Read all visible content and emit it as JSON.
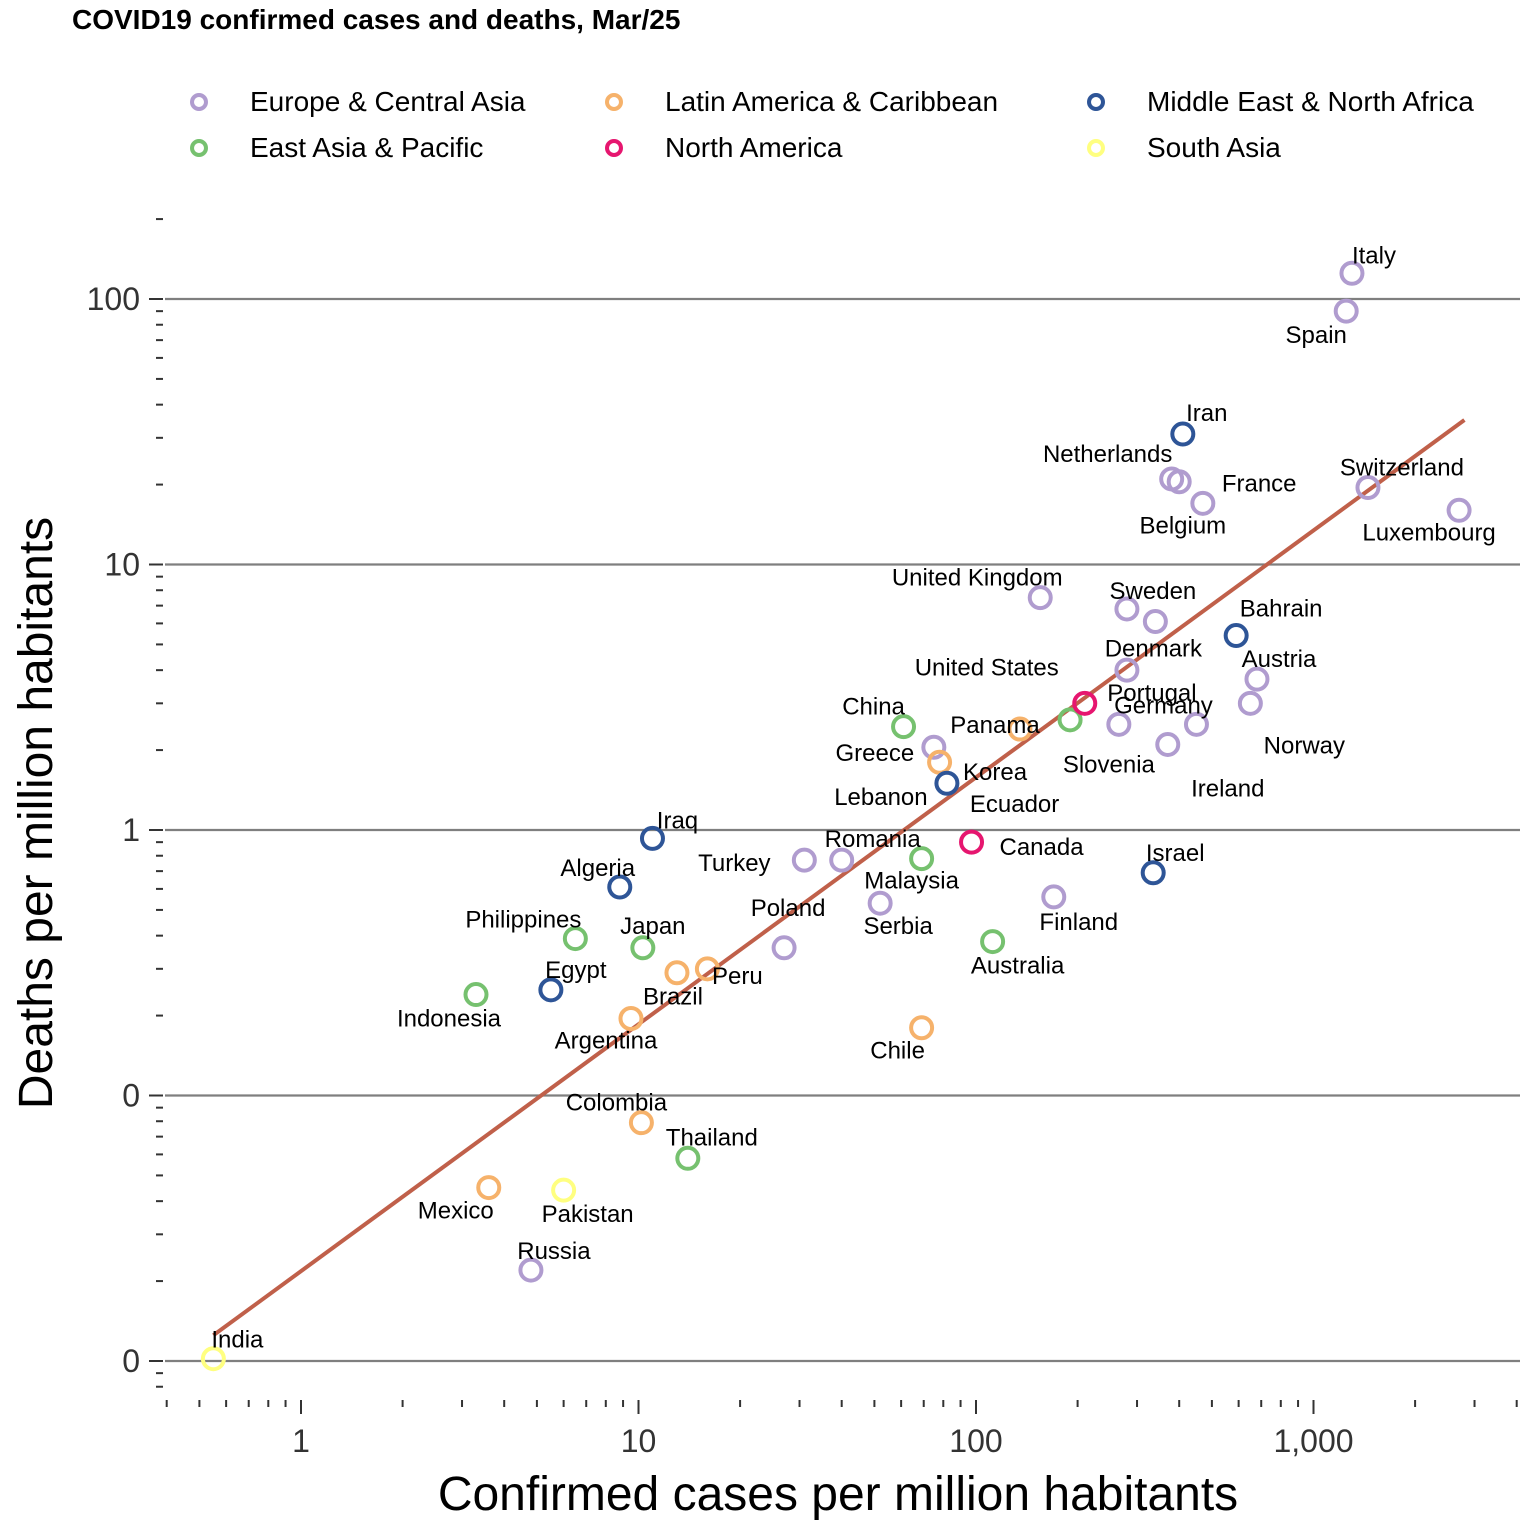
{
  "title": "COVID19 confirmed cases and deaths, Mar/25",
  "legend": [
    {
      "label": "Europe & Central Asia",
      "color": "#b09ccf"
    },
    {
      "label": "Latin America & Caribbean",
      "color": "#f6b26b"
    },
    {
      "label": "Middle East & North Africa",
      "color": "#2e5597"
    },
    {
      "label": "East Asia & Pacific",
      "color": "#76c16f"
    },
    {
      "label": "North America",
      "color": "#e6166f"
    },
    {
      "label": "South Asia",
      "color": "#ffff80"
    }
  ],
  "chart_data": {
    "type": "scatter",
    "title": "COVID19 confirmed cases and deaths, Mar/25",
    "xlabel": "Confirmed cases per million habitants",
    "ylabel": "Deaths per million habitants",
    "x_scale": "log10",
    "y_scale": "log10",
    "xlim": [
      0.4,
      4500
    ],
    "ylim": [
      0.0075,
      260
    ],
    "x_ticks": [
      {
        "value": 1,
        "label": "1"
      },
      {
        "value": 10,
        "label": "10"
      },
      {
        "value": 100,
        "label": "100"
      },
      {
        "value": 1000,
        "label": "1,000"
      }
    ],
    "y_ticks": [
      {
        "value": 0.01,
        "label": "0"
      },
      {
        "value": 0.1,
        "label": "0"
      },
      {
        "value": 1,
        "label": "1"
      },
      {
        "value": 10,
        "label": "10"
      },
      {
        "value": 100,
        "label": "100"
      }
    ],
    "grid": "horizontal major",
    "legend_position": "top",
    "trend_line": {
      "x": [
        0.55,
        2800
      ],
      "y": [
        0.0125,
        35
      ]
    },
    "series": [
      {
        "name": "Europe & Central Asia",
        "color": "#b09ccf",
        "points": [
          {
            "label": "Italy",
            "x": 1300,
            "y": 125
          },
          {
            "label": "Spain",
            "x": 1250,
            "y": 90
          },
          {
            "label": "Netherlands",
            "x": 380,
            "y": 21
          },
          {
            "label": "France",
            "x": 400,
            "y": 20.5
          },
          {
            "label": "Belgium",
            "x": 470,
            "y": 17
          },
          {
            "label": "Switzerland",
            "x": 1450,
            "y": 19.5
          },
          {
            "label": "Luxembourg",
            "x": 2700,
            "y": 16
          },
          {
            "label": "United Kingdom",
            "x": 155,
            "y": 7.5
          },
          {
            "label": "Sweden",
            "x": 280,
            "y": 6.8
          },
          {
            "label": "Denmark",
            "x": 340,
            "y": 6.1
          },
          {
            "label": "Portugal",
            "x": 280,
            "y": 4
          },
          {
            "label": "Austria",
            "x": 680,
            "y": 3.7
          },
          {
            "label": "Norway",
            "x": 650,
            "y": 3
          },
          {
            "label": "Germany",
            "x": 450,
            "y": 2.5
          },
          {
            "label": "Slovenia",
            "x": 265,
            "y": 2.5
          },
          {
            "label": "Ireland",
            "x": 370,
            "y": 2.1
          },
          {
            "label": "Greece",
            "x": 75,
            "y": 2.05
          },
          {
            "label": "Finland",
            "x": 170,
            "y": 0.56
          },
          {
            "label": "Turkey",
            "x": 31,
            "y": 0.77
          },
          {
            "label": "Romania",
            "x": 40,
            "y": 0.77
          },
          {
            "label": "Serbia",
            "x": 52,
            "y": 0.53
          },
          {
            "label": "Poland",
            "x": 27,
            "y": 0.36
          },
          {
            "label": "Russia",
            "x": 4.8,
            "y": 0.022
          }
        ]
      },
      {
        "name": "Latin America & Caribbean",
        "color": "#f6b26b",
        "points": [
          {
            "label": "Panama",
            "x": 135,
            "y": 2.4
          },
          {
            "label": "Ecuador",
            "x": 78,
            "y": 1.8
          },
          {
            "label": "Peru",
            "x": 16,
            "y": 0.3
          },
          {
            "label": "Brazil",
            "x": 13,
            "y": 0.29
          },
          {
            "label": "Argentina",
            "x": 9.5,
            "y": 0.195
          },
          {
            "label": "Chile",
            "x": 69,
            "y": 0.18
          },
          {
            "label": "Colombia",
            "x": 10.2,
            "y": 0.079
          },
          {
            "label": "Mexico",
            "x": 3.6,
            "y": 0.045
          }
        ]
      },
      {
        "name": "Middle East & North Africa",
        "color": "#2e5597",
        "points": [
          {
            "label": "Iran",
            "x": 410,
            "y": 31
          },
          {
            "label": "Bahrain",
            "x": 590,
            "y": 5.4
          },
          {
            "label": "Lebanon",
            "x": 82,
            "y": 1.5
          },
          {
            "label": "Israel",
            "x": 335,
            "y": 0.69
          },
          {
            "label": "Iraq",
            "x": 11,
            "y": 0.93
          },
          {
            "label": "Algeria",
            "x": 8.8,
            "y": 0.61
          },
          {
            "label": "Egypt",
            "x": 5.5,
            "y": 0.25
          }
        ]
      },
      {
        "name": "East Asia & Pacific",
        "color": "#76c16f",
        "points": [
          {
            "label": "China",
            "x": 61,
            "y": 2.45
          },
          {
            "label": "Korea",
            "x": 190,
            "y": 2.6
          },
          {
            "label": "Malaysia",
            "x": 69,
            "y": 0.78
          },
          {
            "label": "Australia",
            "x": 112,
            "y": 0.38
          },
          {
            "label": "Philippines",
            "x": 6.5,
            "y": 0.39
          },
          {
            "label": "Japan",
            "x": 10.3,
            "y": 0.36
          },
          {
            "label": "Indonesia",
            "x": 3.3,
            "y": 0.24
          },
          {
            "label": "Thailand",
            "x": 14,
            "y": 0.058
          }
        ]
      },
      {
        "name": "North America",
        "color": "#e6166f",
        "points": [
          {
            "label": "United States",
            "x": 210,
            "y": 3
          },
          {
            "label": "Canada",
            "x": 97,
            "y": 0.9
          }
        ]
      },
      {
        "name": "South Asia",
        "color": "#ffff80",
        "points": [
          {
            "label": "Pakistan",
            "x": 6,
            "y": 0.044
          },
          {
            "label": "India",
            "x": 0.55,
            "y": 0.0102
          }
        ]
      }
    ]
  }
}
